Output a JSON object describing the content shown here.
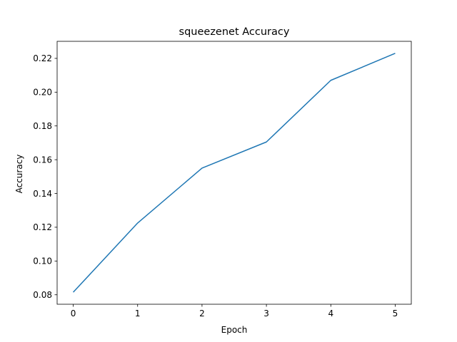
{
  "chart_data": {
    "type": "line",
    "title": "squeezenet Accuracy",
    "xlabel": "Epoch",
    "ylabel": "Accuracy",
    "x": [
      0,
      1,
      2,
      3,
      4,
      5
    ],
    "series": [
      {
        "values": [
          0.0815,
          0.1225,
          0.155,
          0.1705,
          0.207,
          0.223
        ],
        "color": "#1f77b4"
      }
    ],
    "xticks": [
      "0",
      "1",
      "2",
      "3",
      "4",
      "5"
    ],
    "yticks": [
      "0.08",
      "0.10",
      "0.12",
      "0.14",
      "0.16",
      "0.18",
      "0.20",
      "0.22"
    ],
    "xlim": [
      -0.25,
      5.25
    ],
    "ylim": [
      0.0744,
      0.2301
    ],
    "grid": false,
    "legend": "none"
  }
}
